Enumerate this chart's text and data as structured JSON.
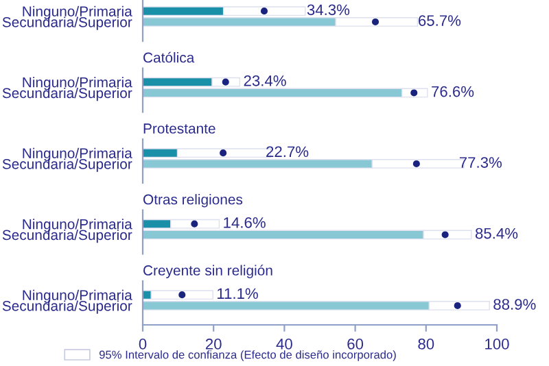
{
  "chart_data": [
    {
      "type": "bar",
      "orientation": "horizontal",
      "stacked": true,
      "categories": [
        "Ninguno/Primaria",
        "Secundaria/Superior"
      ],
      "xlim": [
        0,
        100
      ],
      "xticks": [
        0,
        20,
        40,
        60,
        80,
        100
      ],
      "tick_labels": "y",
      "series": [
        {
          "colors": [
            "#1a8fa8",
            "#88c8d4"
          ],
          "values": [
            22.8,
            54.5
          ]
        },
        {
          "color": "#ffffff",
          "values": [
            23.1,
            23.1
          ]
        },
        {
          "type": "scatter",
          "color": "#1a237e",
          "values": [
            34.3,
            65.7
          ],
          "value_labels": [
            "34.3%",
            "65.7%"
          ]
        }
      ]
    },
    {
      "type": "bar",
      "orientation": "horizontal",
      "stacked": true,
      "title": "Católica",
      "categories": [
        "Ninguno/Primaria",
        "Secundaria/Superior"
      ],
      "xlim": [
        0,
        100
      ],
      "xticks": [
        0,
        20,
        40,
        60,
        80,
        100
      ],
      "tick_labels": "y",
      "series": [
        {
          "colors": [
            "#1a8fa8",
            "#88c8d4"
          ],
          "values": [
            19.6,
            73.2
          ]
        },
        {
          "color": "#ffffff",
          "values": [
            7.8,
            7.2
          ]
        },
        {
          "type": "scatter",
          "color": "#1a237e",
          "values": [
            23.4,
            76.6
          ],
          "value_labels": [
            "23.4%",
            "76.6%"
          ]
        }
      ]
    },
    {
      "type": "bar",
      "orientation": "horizontal",
      "stacked": true,
      "title": "Protestante",
      "categories": [
        "Ninguno/Primaria",
        "Secundaria/Superior"
      ],
      "xlim": [
        0,
        100
      ],
      "xticks": [
        0,
        20,
        40,
        60,
        80,
        100
      ],
      "tick_labels": "y",
      "series": [
        {
          "colors": [
            "#1a8fa8",
            "#88c8d4"
          ],
          "values": [
            9.8,
            64.8
          ]
        },
        {
          "color": "#ffffff",
          "values": [
            26.3,
            25.9
          ]
        },
        {
          "type": "scatter",
          "color": "#1a237e",
          "values": [
            22.7,
            77.3
          ],
          "value_labels": [
            "22.7%",
            "77.3%"
          ]
        }
      ]
    },
    {
      "type": "bar",
      "orientation": "horizontal",
      "stacked": true,
      "title": "Otras religiones",
      "categories": [
        "Ninguno/Primaria",
        "Secundaria/Superior"
      ],
      "xlim": [
        0,
        100
      ],
      "xticks": [
        0,
        20,
        40,
        60,
        80,
        100
      ],
      "tick_labels": "y",
      "series": [
        {
          "colors": [
            "#1a8fa8",
            "#88c8d4"
          ],
          "values": [
            7.9,
            79.3
          ]
        },
        {
          "color": "#ffffff",
          "values": [
            13.7,
            13.5
          ]
        },
        {
          "type": "scatter",
          "color": "#1a237e",
          "values": [
            14.6,
            85.4
          ],
          "value_labels": [
            "14.6%",
            "85.4%"
          ]
        }
      ]
    },
    {
      "type": "bar",
      "orientation": "horizontal",
      "stacked": true,
      "title": "Creyente sin religión",
      "categories": [
        "Ninguno/Primaria",
        "Secundaria/Superior"
      ],
      "xlim": [
        0,
        100
      ],
      "xticks": [
        0,
        20,
        40,
        60,
        80,
        100
      ],
      "legend": "bottom",
      "series": [
        {
          "colors": [
            "#1a8fa8",
            "#88c8d4"
          ],
          "values": [
            2.4,
            80.9
          ]
        },
        {
          "name": "95% Intervalo de confianza (Efecto de diseño incorporado)",
          "color": "#ffffff",
          "values": [
            17.4,
            17.0
          ]
        },
        {
          "type": "scatter",
          "color": "#1a237e",
          "values": [
            11.1,
            88.9
          ],
          "value_labels": [
            "11.1%",
            "88.9%"
          ]
        }
      ]
    }
  ]
}
